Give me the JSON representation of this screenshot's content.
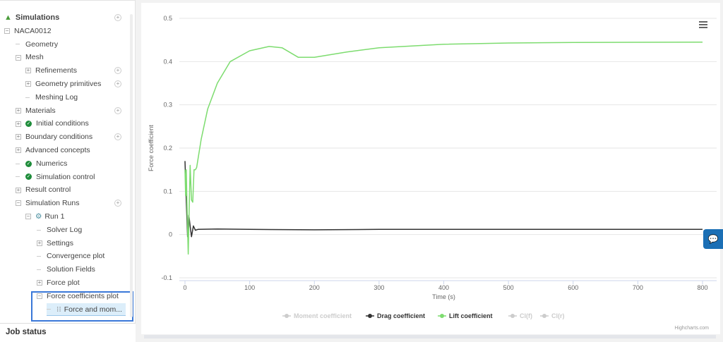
{
  "sidebar": {
    "items": [
      {
        "label": "Simulations",
        "level": 0,
        "type": "root",
        "add": true
      },
      {
        "label": "NACA0012",
        "level": 0,
        "type": "minus"
      },
      {
        "label": "Geometry",
        "level": 1,
        "type": "leaf"
      },
      {
        "label": "Mesh",
        "level": 1,
        "type": "minus"
      },
      {
        "label": "Refinements",
        "level": 2,
        "type": "plus",
        "add": true
      },
      {
        "label": "Geometry primitives",
        "level": 2,
        "type": "plus",
        "add": true
      },
      {
        "label": "Meshing Log",
        "level": 2,
        "type": "leaf"
      },
      {
        "label": "Materials",
        "level": 1,
        "type": "plus",
        "add": true
      },
      {
        "label": "Initial conditions",
        "level": 1,
        "type": "plus",
        "check": true
      },
      {
        "label": "Boundary conditions",
        "level": 1,
        "type": "plus",
        "add": true
      },
      {
        "label": "Advanced concepts",
        "level": 1,
        "type": "plus"
      },
      {
        "label": "Numerics",
        "level": 1,
        "type": "leaf",
        "check": true
      },
      {
        "label": "Simulation control",
        "level": 1,
        "type": "leaf",
        "check": true
      },
      {
        "label": "Result control",
        "level": 1,
        "type": "plus"
      },
      {
        "label": "Simulation Runs",
        "level": 1,
        "type": "minus",
        "add": true
      },
      {
        "label": "Run 1",
        "level": 2,
        "type": "minus"
      },
      {
        "label": "Solver Log",
        "level": 3,
        "type": "leaf"
      },
      {
        "label": "Settings",
        "level": 3,
        "type": "plus"
      },
      {
        "label": "Convergence plot",
        "level": 3,
        "type": "leaf"
      },
      {
        "label": "Solution Fields",
        "level": 3,
        "type": "leaf"
      },
      {
        "label": "Force plot",
        "level": 3,
        "type": "plus"
      },
      {
        "label": "Force coefficients plot",
        "level": 3,
        "type": "minus"
      },
      {
        "label": "Force and mom...",
        "level": 4,
        "type": "leaf",
        "selected": true
      }
    ],
    "job_status": "Job status"
  },
  "chart_data": {
    "type": "line",
    "title": "",
    "xlabel": "Time (s)",
    "ylabel": "Force coefficient",
    "xlim": [
      0,
      800
    ],
    "ylim": [
      -0.1,
      0.5
    ],
    "xticks": [
      0,
      100,
      200,
      300,
      400,
      500,
      600,
      700,
      800
    ],
    "yticks": [
      -0.1,
      0,
      0.1,
      0.2,
      0.3,
      0.4,
      0.5
    ],
    "grid": true,
    "legend_position": "bottom",
    "credits": "Highcharts.com",
    "series": [
      {
        "name": "Moment coefficient",
        "visible": false,
        "color": "#cccccc",
        "x": [],
        "y": []
      },
      {
        "name": "Drag coefficient",
        "visible": true,
        "color": "#333333",
        "x": [
          0,
          2,
          4,
          6,
          8,
          10,
          13,
          16,
          20,
          50,
          100,
          200,
          300,
          800
        ],
        "y": [
          0.17,
          0.08,
          -0.005,
          0.045,
          0.02,
          -0.005,
          0.02,
          0.01,
          0.012,
          0.013,
          0.012,
          0.011,
          0.012,
          0.012
        ]
      },
      {
        "name": "Lift coefficient",
        "visible": true,
        "color": "#7ddc6f",
        "x": [
          0,
          1,
          2,
          3,
          5,
          8,
          10,
          12,
          14,
          16,
          18,
          25,
          35,
          50,
          70,
          100,
          130,
          150,
          175,
          200,
          250,
          300,
          400,
          500,
          600,
          800
        ],
        "y": [
          0.15,
          0.09,
          0.15,
          0.08,
          -0.045,
          0.16,
          0.08,
          0.075,
          0.15,
          0.15,
          0.155,
          0.22,
          0.29,
          0.35,
          0.4,
          0.425,
          0.435,
          0.432,
          0.41,
          0.41,
          0.422,
          0.432,
          0.44,
          0.443,
          0.444,
          0.445
        ]
      },
      {
        "name": "Cl(f)",
        "visible": false,
        "color": "#cccccc",
        "x": [],
        "y": []
      },
      {
        "name": "Cl(r)",
        "visible": false,
        "color": "#cccccc",
        "x": [],
        "y": []
      }
    ]
  }
}
